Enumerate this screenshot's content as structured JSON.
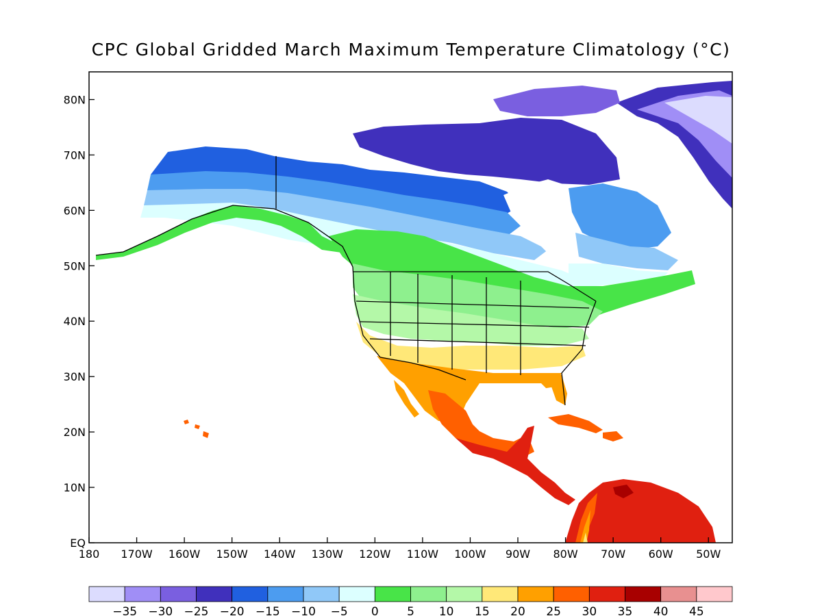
{
  "title": "CPC Global Gridded March Maximum Temperature Climatology (°C)",
  "map": {
    "lon_range": [
      -180,
      -45
    ],
    "lat_range": [
      0,
      85
    ],
    "lat_ticks": [
      {
        "value": 80,
        "label": "80N"
      },
      {
        "value": 70,
        "label": "70N"
      },
      {
        "value": 60,
        "label": "60N"
      },
      {
        "value": 50,
        "label": "50N"
      },
      {
        "value": 40,
        "label": "40N"
      },
      {
        "value": 30,
        "label": "30N"
      },
      {
        "value": 20,
        "label": "20N"
      },
      {
        "value": 10,
        "label": "10N"
      },
      {
        "value": 0,
        "label": "EQ"
      }
    ],
    "lon_ticks": [
      {
        "value": -180,
        "label": "180"
      },
      {
        "value": -170,
        "label": "170W"
      },
      {
        "value": -160,
        "label": "160W"
      },
      {
        "value": -150,
        "label": "150W"
      },
      {
        "value": -140,
        "label": "140W"
      },
      {
        "value": -130,
        "label": "130W"
      },
      {
        "value": -120,
        "label": "120W"
      },
      {
        "value": -110,
        "label": "110W"
      },
      {
        "value": -100,
        "label": "100W"
      },
      {
        "value": -90,
        "label": "90W"
      },
      {
        "value": -80,
        "label": "80W"
      },
      {
        "value": -70,
        "label": "70W"
      },
      {
        "value": -60,
        "label": "60W"
      },
      {
        "value": -50,
        "label": "50W"
      }
    ]
  },
  "colorbar": {
    "colors": [
      "#dcdcfe",
      "#a08ef6",
      "#7a5fe0",
      "#4030bc",
      "#2060e0",
      "#4c9cf0",
      "#90c8f8",
      "#dcffff",
      "#48e448",
      "#8ef08e",
      "#b4f8a8",
      "#ffe878",
      "#ffa000",
      "#ff6000",
      "#e02010",
      "#a80000",
      "#e89090",
      "#ffc8cc"
    ],
    "labels": [
      "-35",
      "-30",
      "-25",
      "-20",
      "-15",
      "-10",
      "-5",
      "0",
      "5",
      "10",
      "15",
      "20",
      "25",
      "30",
      "35",
      "40",
      "45"
    ]
  }
}
